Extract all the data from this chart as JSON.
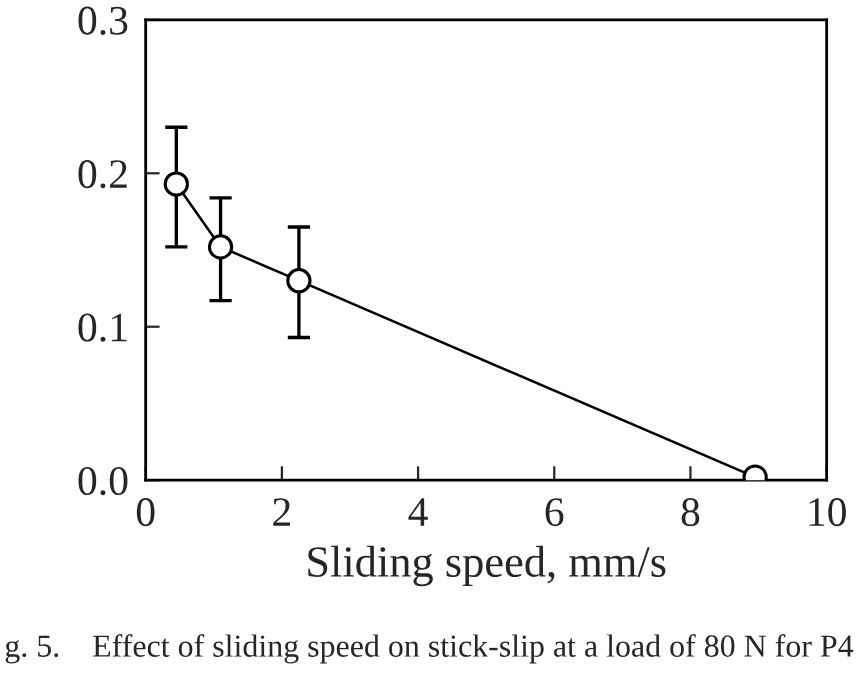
{
  "chart_data": {
    "type": "line",
    "xlabel": "Sliding speed, mm/s",
    "annotations": [
      "g. 5.    Effect of sliding speed on stick-slip at a load of 80 N for P4"
    ],
    "x": [
      0.45,
      1.1,
      2.25,
      8.95
    ],
    "series": [
      {
        "color": "#000000",
        "values": [
          0.193,
          0.152,
          0.13,
          0.002
        ],
        "errors": [
          [
            0.152,
            0.23
          ],
          [
            0.117,
            0.184
          ],
          [
            0.093,
            0.165
          ],
          null
        ]
      }
    ],
    "marker": "circle",
    "line_style": "solid",
    "grid": false,
    "legend": false,
    "xlim": [
      0,
      10
    ],
    "xticks": [
      0,
      2,
      4,
      6,
      8,
      10
    ],
    "ylim": [
      0.0,
      0.3
    ],
    "yticks": [
      {
        "value": 0.0,
        "label": "0.0"
      },
      0.1,
      0.2,
      0.3
    ]
  }
}
